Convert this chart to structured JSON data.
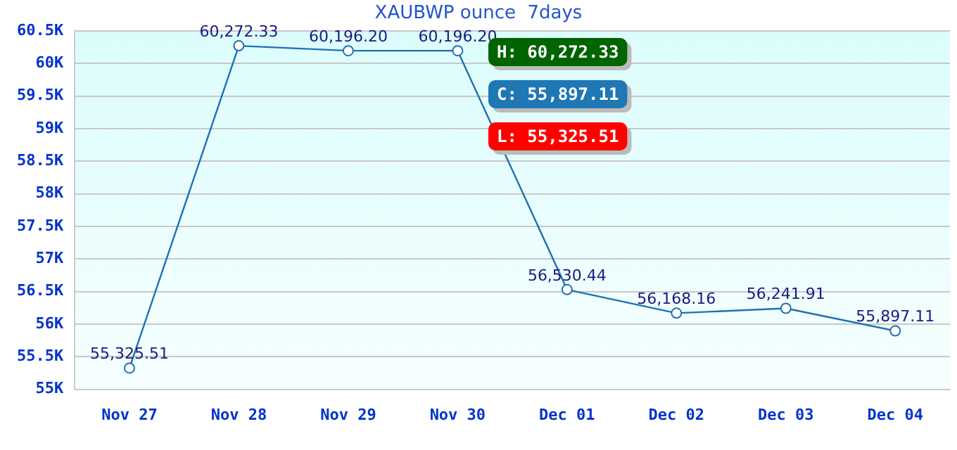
{
  "chart_data": {
    "type": "line",
    "title": "XAUBWP ounce  7days",
    "categories": [
      "Nov 27",
      "Nov 28",
      "Nov 29",
      "Nov 30",
      "Dec 01",
      "Dec 02",
      "Dec 03",
      "Dec 04"
    ],
    "series": [
      {
        "color": "#2070b0",
        "values": [
          55325.51,
          60272.33,
          60196.2,
          60196.2,
          56530.44,
          56168.16,
          56241.91,
          55897.11
        ],
        "value_labels": [
          "55,325.51",
          "60,272.33",
          "60,196.20",
          "60,196.20",
          "56,530.44",
          "56,168.16",
          "56,241.91",
          "55,897.11"
        ]
      }
    ],
    "ylim": [
      55000,
      60500
    ],
    "yticks": [
      {
        "value": 55000,
        "label": "55K"
      },
      {
        "value": 55500,
        "label": "55.5K"
      },
      {
        "value": 56000,
        "label": "56K"
      },
      {
        "value": 56500,
        "label": "56.5K"
      },
      {
        "value": 57000,
        "label": "57K"
      },
      {
        "value": 57500,
        "label": "57.5K"
      },
      {
        "value": 58000,
        "label": "58K"
      },
      {
        "value": 58500,
        "label": "58.5K"
      },
      {
        "value": 59000,
        "label": "59K"
      },
      {
        "value": 59500,
        "label": "59.5K"
      },
      {
        "value": 60000,
        "label": "60K"
      },
      {
        "value": 60500,
        "label": "60.5K"
      }
    ],
    "grid": "y",
    "legend": false,
    "marker": "circle",
    "line_style": "solid",
    "annotations": [
      "H: 60,272.33",
      "C: 55,897.11",
      "L: 55,325.51"
    ]
  }
}
